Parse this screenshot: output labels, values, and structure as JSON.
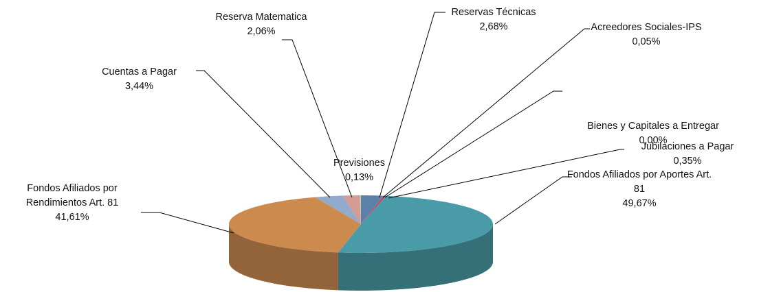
{
  "chart_data": {
    "type": "pie",
    "categories": [
      "Reservas Técnicas",
      "Acreedores Sociales-IPS",
      "Bienes y Capitales a Entregar",
      "Jubilaciones a Pagar",
      "Fondos Afiliados por Aportes Art. 81",
      "Fondos Afiliados por Rendimientos Art. 81",
      "Cuentas a Pagar",
      "Reserva Matematica",
      "Previsiones"
    ],
    "values": [
      2.68,
      0.05,
      0.0,
      0.35,
      49.67,
      41.61,
      3.44,
      2.06,
      0.13
    ],
    "value_labels": [
      "2,68%",
      "0,05%",
      "0,00%",
      "0,35%",
      "49,67%",
      "41,61%",
      "3,44%",
      "2,06%",
      "0,13%"
    ],
    "colors": [
      "#5b80aa",
      "#c0504d",
      "#9bbb59",
      "#b0506a",
      "#4a9ba8",
      "#cc8a4f",
      "#92abcc",
      "#d69a94",
      "#c3d69b"
    ]
  }
}
